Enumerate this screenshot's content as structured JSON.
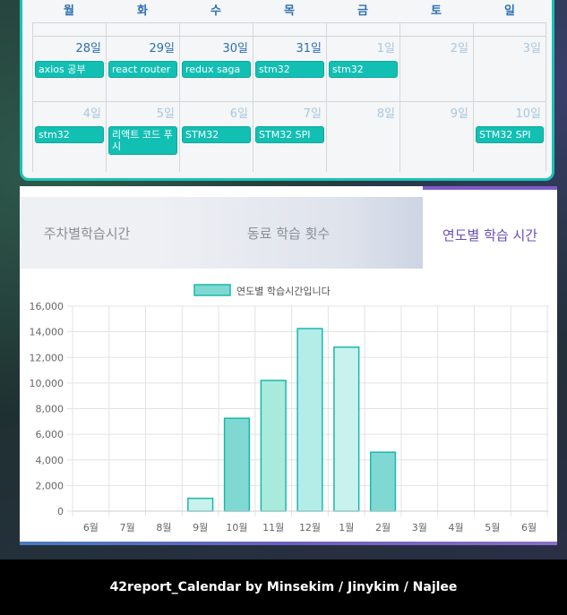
{
  "calendar": {
    "weekdays": [
      "월",
      "화",
      "수",
      "목",
      "금",
      "토",
      "일"
    ],
    "weeks": [
      [
        {
          "day": "28일",
          "muted": false,
          "events": [
            "axios 공부"
          ]
        },
        {
          "day": "29일",
          "muted": false,
          "events": [
            "react router"
          ]
        },
        {
          "day": "30일",
          "muted": false,
          "events": [
            "redux saga"
          ]
        },
        {
          "day": "31일",
          "muted": false,
          "events": [
            "stm32"
          ]
        },
        {
          "day": "1일",
          "muted": true,
          "events": [
            "stm32"
          ]
        },
        {
          "day": "2일",
          "muted": true,
          "events": []
        },
        {
          "day": "3일",
          "muted": true,
          "events": []
        }
      ],
      [
        {
          "day": "4일",
          "muted": true,
          "events": [
            "stm32"
          ]
        },
        {
          "day": "5일",
          "muted": true,
          "events": [
            "리액트 코드 푸시"
          ]
        },
        {
          "day": "6일",
          "muted": true,
          "events": [
            "STM32"
          ]
        },
        {
          "day": "7일",
          "muted": true,
          "events": [
            "STM32 SPI"
          ]
        },
        {
          "day": "8일",
          "muted": true,
          "events": []
        },
        {
          "day": "9일",
          "muted": true,
          "events": []
        },
        {
          "day": "10일",
          "muted": true,
          "events": [
            "STM32 SPI"
          ]
        }
      ]
    ]
  },
  "tabs": {
    "weekly": "주차별학습시간",
    "peer": "동료 학습 횟수",
    "yearly": "연도별 학습 시간"
  },
  "colors": {
    "accent": "#19c2b4",
    "active_tab": "#6b4fb5"
  },
  "chart_data": {
    "type": "bar",
    "legend": "연도별 학습시간입니다",
    "categories": [
      "6월",
      "7월",
      "8월",
      "9월",
      "10월",
      "11월",
      "12월",
      "1월",
      "2월",
      "3월",
      "4월",
      "5월",
      "6월"
    ],
    "values": [
      0,
      0,
      0,
      1000,
      7250,
      10200,
      14250,
      12800,
      4600,
      0,
      0,
      0,
      0
    ],
    "yticks": [
      0,
      2000,
      4000,
      6000,
      8000,
      10000,
      12000,
      14000,
      16000
    ],
    "ytick_labels": [
      "0",
      "2,000",
      "4,000",
      "6,000",
      "8,000",
      "10,000",
      "12,000",
      "14,000",
      "16,000"
    ],
    "ylim": [
      0,
      16000
    ],
    "grid": true,
    "legend_position": "top",
    "bar_fills": [
      "#b2ece6",
      "#b2ece6",
      "#b2ece6",
      "#c9f2ee",
      "#7fd9d2",
      "#a8ebdc",
      "#b4ece8",
      "#c9f2ee",
      "#7fd9d2",
      "#b2ece6",
      "#b2ece6",
      "#b2ece6",
      "#b2ece6"
    ],
    "bar_stroke": "#19b8ad"
  },
  "footer": {
    "credit": "42report_Calendar by Minsekim / Jinykim / Najlee"
  }
}
